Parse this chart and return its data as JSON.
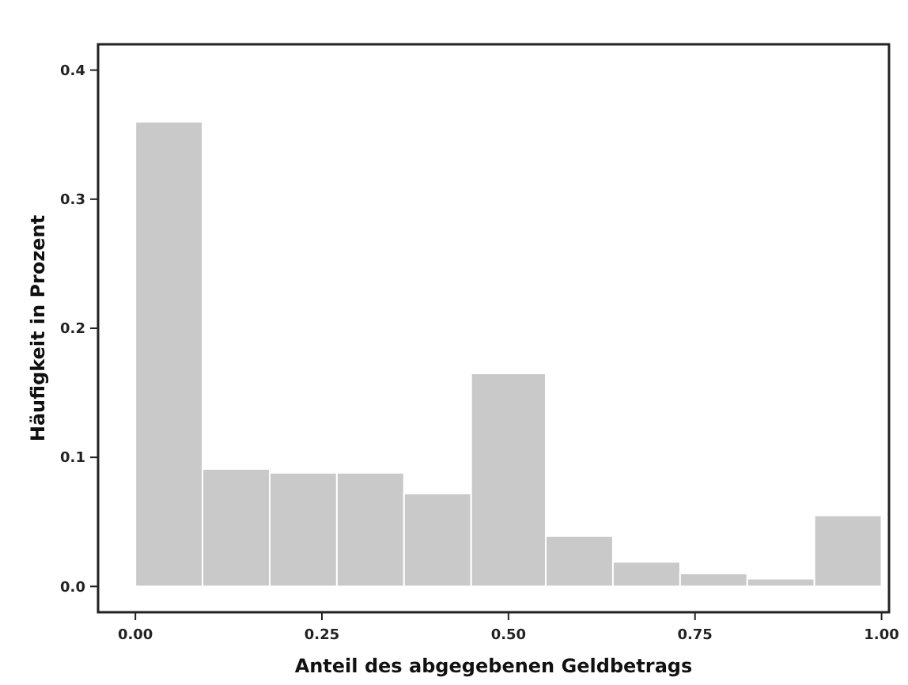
{
  "chart_data": {
    "type": "histogram",
    "xlabel": "Anteil des abgegebenen Geldbetrags",
    "ylabel": "Häufigkeit in Prozent",
    "bins": [
      0,
      0.09,
      0.18,
      0.27,
      0.36,
      0.45,
      0.55,
      0.64,
      0.73,
      0.82,
      0.91,
      1.0
    ],
    "values": [
      0.36,
      0.091,
      0.088,
      0.088,
      0.072,
      0.165,
      0.039,
      0.019,
      0.01,
      0.006,
      0.055
    ],
    "color": "#c9c9c9",
    "xlim": [
      -0.05,
      1.01
    ],
    "ylim": [
      -0.02,
      0.42
    ],
    "xticks": [
      {
        "value": 0,
        "label": "0.00"
      },
      0.25,
      {
        "value": 0.5,
        "label": "0.50"
      },
      0.75,
      {
        "value": 1,
        "label": "1.00"
      }
    ],
    "yticks": [
      {
        "value": 0,
        "label": "0.0"
      },
      0.1,
      0.2,
      0.3,
      0.4
    ],
    "grid": false
  }
}
